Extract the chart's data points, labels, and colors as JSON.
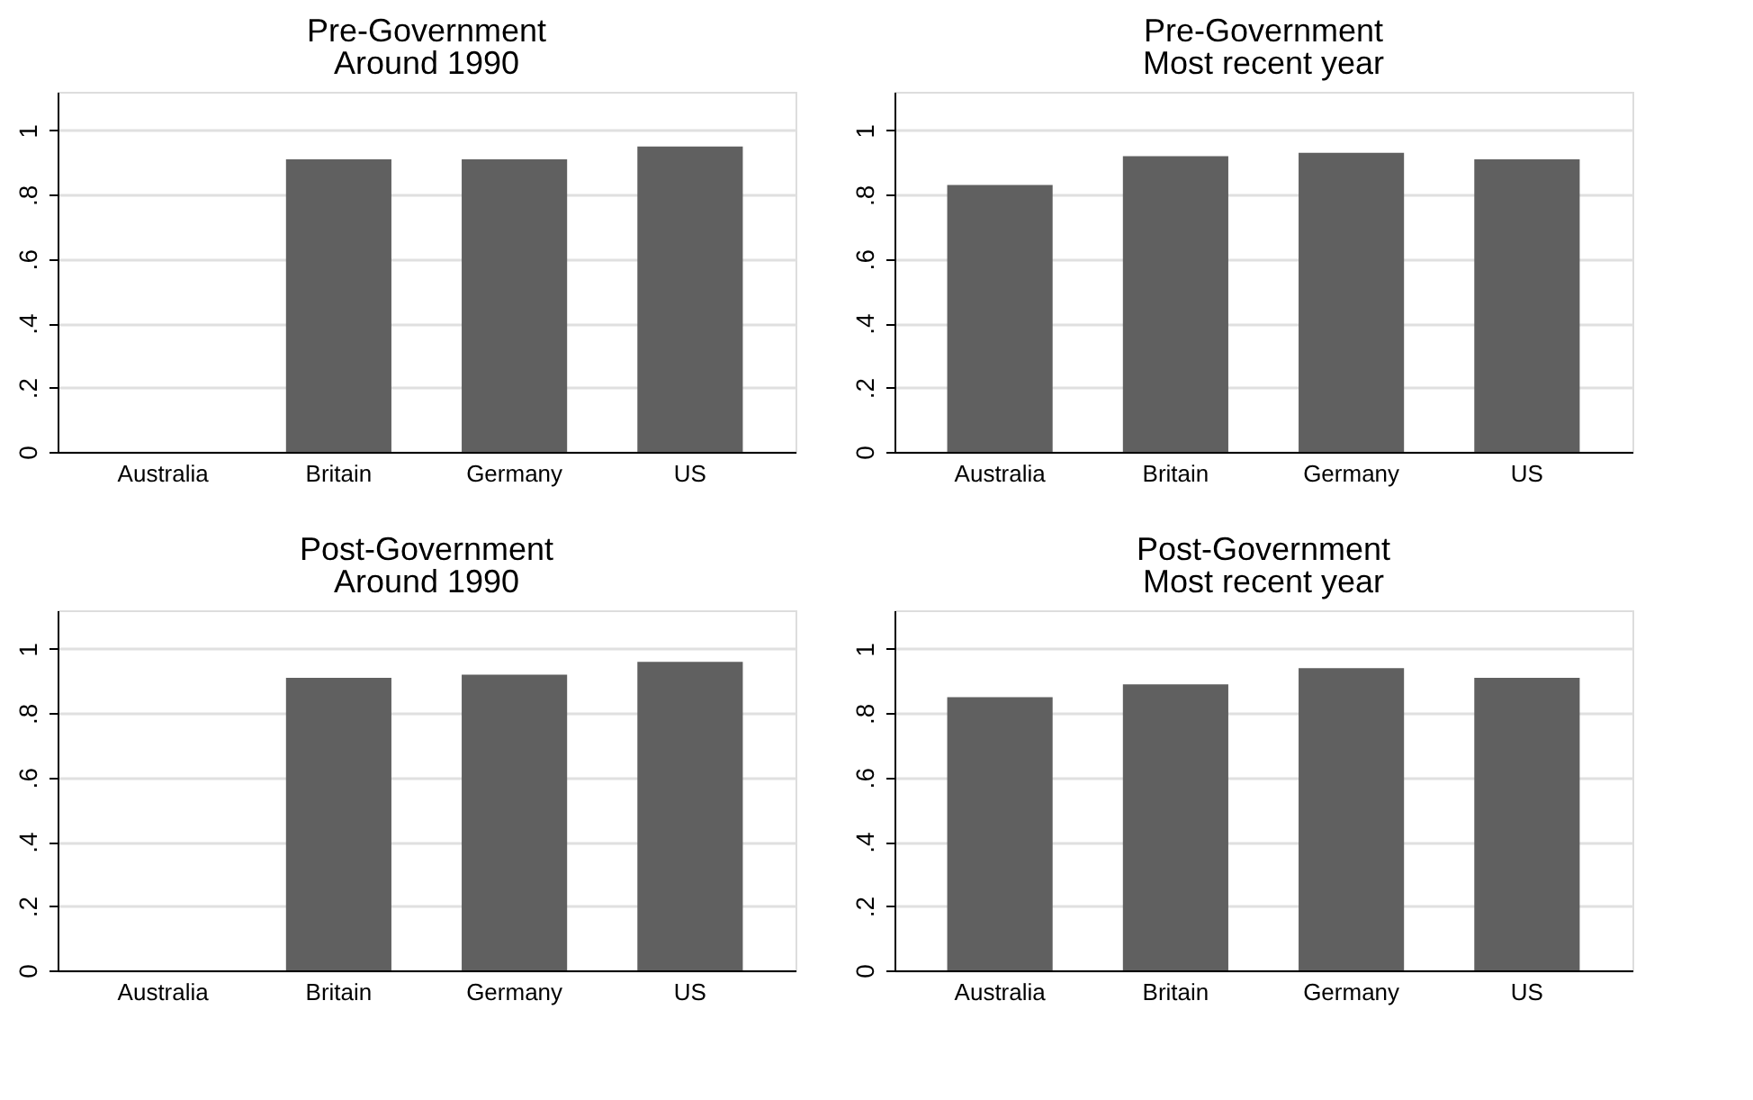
{
  "chart_data": [
    {
      "type": "bar",
      "title": "Pre-Government",
      "subtitle": "Around 1990",
      "categories": [
        "Australia",
        "Britain",
        "Germany",
        "US"
      ],
      "values": [
        null,
        0.91,
        0.91,
        0.95
      ],
      "color": "#606060",
      "ylim": [
        0,
        1.12
      ],
      "yticks": [
        {
          "value": 0,
          "label": "0"
        },
        {
          "value": 0.2,
          "label": ".2"
        },
        {
          "value": 0.4,
          "label": ".4"
        },
        {
          "value": 0.6,
          "label": ".6"
        },
        {
          "value": 0.8,
          "label": ".8"
        },
        {
          "value": 1,
          "label": "1"
        }
      ],
      "grid": "y"
    },
    {
      "type": "bar",
      "title": "Pre-Government",
      "subtitle": "Most recent year",
      "categories": [
        "Australia",
        "Britain",
        "Germany",
        "US"
      ],
      "values": [
        0.83,
        0.92,
        0.93,
        0.91
      ],
      "color": "#606060",
      "ylim": [
        0,
        1.12
      ],
      "yticks": [
        {
          "value": 0,
          "label": "0"
        },
        {
          "value": 0.2,
          "label": ".2"
        },
        {
          "value": 0.4,
          "label": ".4"
        },
        {
          "value": 0.6,
          "label": ".6"
        },
        {
          "value": 0.8,
          "label": ".8"
        },
        {
          "value": 1,
          "label": "1"
        }
      ],
      "grid": "y"
    },
    {
      "type": "bar",
      "title": "Post-Government",
      "subtitle": "Around 1990",
      "categories": [
        "Australia",
        "Britain",
        "Germany",
        "US"
      ],
      "values": [
        null,
        0.91,
        0.92,
        0.96
      ],
      "color": "#606060",
      "ylim": [
        0,
        1.12
      ],
      "yticks": [
        {
          "value": 0,
          "label": "0"
        },
        {
          "value": 0.2,
          "label": ".2"
        },
        {
          "value": 0.4,
          "label": ".4"
        },
        {
          "value": 0.6,
          "label": ".6"
        },
        {
          "value": 0.8,
          "label": ".8"
        },
        {
          "value": 1,
          "label": "1"
        }
      ],
      "grid": "y"
    },
    {
      "type": "bar",
      "title": "Post-Government",
      "subtitle": "Most recent year",
      "categories": [
        "Australia",
        "Britain",
        "Germany",
        "US"
      ],
      "values": [
        0.85,
        0.89,
        0.94,
        0.91
      ],
      "color": "#606060",
      "ylim": [
        0,
        1.12
      ],
      "yticks": [
        {
          "value": 0,
          "label": "0"
        },
        {
          "value": 0.2,
          "label": ".2"
        },
        {
          "value": 0.4,
          "label": ".4"
        },
        {
          "value": 0.6,
          "label": ".6"
        },
        {
          "value": 0.8,
          "label": ".8"
        },
        {
          "value": 1,
          "label": "1"
        }
      ],
      "grid": "y"
    }
  ]
}
